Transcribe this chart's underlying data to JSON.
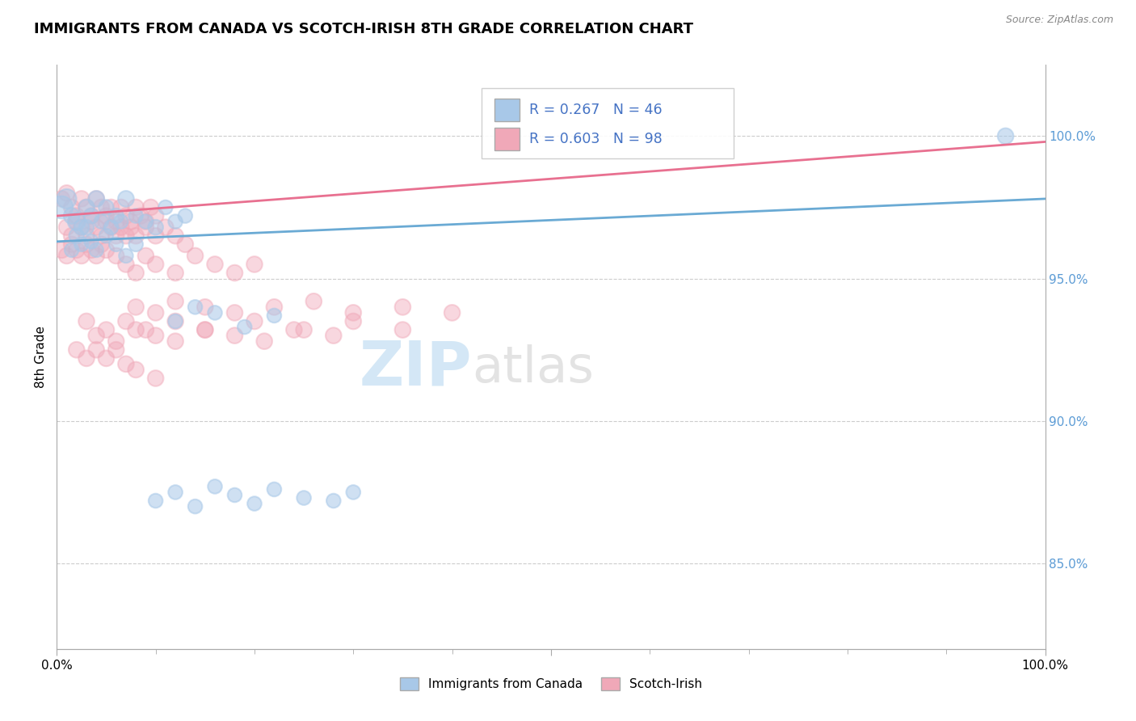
{
  "title": "IMMIGRANTS FROM CANADA VS SCOTCH-IRISH 8TH GRADE CORRELATION CHART",
  "source_text": "Source: ZipAtlas.com",
  "ylabel": "8th Grade",
  "y_ticks": [
    0.85,
    0.9,
    0.95,
    1.0
  ],
  "color_canada": "#a8c8e8",
  "color_scotch": "#f0a8b8",
  "color_canada_line": "#6aaad4",
  "color_scotch_line": "#e87090",
  "watermark_zip": "ZIP",
  "watermark_atlas": "atlas",
  "canada_x": [
    0.005,
    0.01,
    0.015,
    0.02,
    0.025,
    0.03,
    0.035,
    0.04,
    0.045,
    0.05,
    0.055,
    0.06,
    0.065,
    0.07,
    0.08,
    0.09,
    0.1,
    0.11,
    0.12,
    0.13,
    0.015,
    0.02,
    0.025,
    0.03,
    0.035,
    0.04,
    0.05,
    0.06,
    0.07,
    0.08,
    0.1,
    0.12,
    0.14,
    0.16,
    0.18,
    0.2,
    0.22,
    0.25,
    0.28,
    0.3,
    0.12,
    0.14,
    0.16,
    0.19,
    0.22,
    0.96
  ],
  "canada_y": [
    0.975,
    0.978,
    0.972,
    0.97,
    0.968,
    0.975,
    0.972,
    0.978,
    0.97,
    0.975,
    0.968,
    0.972,
    0.97,
    0.978,
    0.972,
    0.97,
    0.968,
    0.975,
    0.97,
    0.972,
    0.96,
    0.965,
    0.962,
    0.968,
    0.963,
    0.96,
    0.965,
    0.962,
    0.958,
    0.962,
    0.872,
    0.875,
    0.87,
    0.877,
    0.874,
    0.871,
    0.876,
    0.873,
    0.872,
    0.875,
    0.935,
    0.94,
    0.938,
    0.933,
    0.937,
    1.0
  ],
  "canada_size": [
    400,
    300,
    200,
    250,
    180,
    200,
    180,
    200,
    160,
    180,
    160,
    180,
    160,
    200,
    160,
    160,
    180,
    160,
    160,
    160,
    160,
    180,
    160,
    180,
    160,
    160,
    160,
    160,
    160,
    160,
    160,
    160,
    160,
    160,
    160,
    160,
    160,
    160,
    160,
    160,
    160,
    160,
    160,
    160,
    160,
    200
  ],
  "scotch_x": [
    0.005,
    0.01,
    0.015,
    0.02,
    0.025,
    0.03,
    0.035,
    0.04,
    0.045,
    0.05,
    0.055,
    0.06,
    0.065,
    0.07,
    0.075,
    0.08,
    0.085,
    0.09,
    0.095,
    0.1,
    0.01,
    0.015,
    0.02,
    0.025,
    0.03,
    0.035,
    0.04,
    0.045,
    0.05,
    0.055,
    0.06,
    0.065,
    0.07,
    0.075,
    0.08,
    0.09,
    0.1,
    0.11,
    0.12,
    0.13,
    0.005,
    0.01,
    0.015,
    0.02,
    0.025,
    0.03,
    0.035,
    0.04,
    0.045,
    0.05,
    0.06,
    0.07,
    0.08,
    0.09,
    0.1,
    0.12,
    0.14,
    0.16,
    0.18,
    0.2,
    0.08,
    0.1,
    0.12,
    0.15,
    0.18,
    0.22,
    0.26,
    0.3,
    0.35,
    0.4,
    0.03,
    0.05,
    0.07,
    0.09,
    0.12,
    0.15,
    0.2,
    0.25,
    0.3,
    0.35,
    0.04,
    0.06,
    0.08,
    0.1,
    0.12,
    0.15,
    0.18,
    0.21,
    0.24,
    0.28,
    0.02,
    0.03,
    0.04,
    0.05,
    0.06,
    0.07,
    0.08,
    0.1
  ],
  "scotch_y": [
    0.978,
    0.98,
    0.975,
    0.972,
    0.978,
    0.975,
    0.972,
    0.978,
    0.975,
    0.972,
    0.975,
    0.97,
    0.975,
    0.972,
    0.97,
    0.975,
    0.972,
    0.97,
    0.975,
    0.972,
    0.968,
    0.965,
    0.97,
    0.968,
    0.965,
    0.97,
    0.968,
    0.965,
    0.97,
    0.968,
    0.965,
    0.968,
    0.965,
    0.968,
    0.965,
    0.968,
    0.965,
    0.968,
    0.965,
    0.962,
    0.96,
    0.958,
    0.962,
    0.96,
    0.958,
    0.962,
    0.96,
    0.958,
    0.962,
    0.96,
    0.958,
    0.955,
    0.952,
    0.958,
    0.955,
    0.952,
    0.958,
    0.955,
    0.952,
    0.955,
    0.94,
    0.938,
    0.942,
    0.94,
    0.938,
    0.94,
    0.942,
    0.938,
    0.94,
    0.938,
    0.935,
    0.932,
    0.935,
    0.932,
    0.935,
    0.932,
    0.935,
    0.932,
    0.935,
    0.932,
    0.93,
    0.928,
    0.932,
    0.93,
    0.928,
    0.932,
    0.93,
    0.928,
    0.932,
    0.93,
    0.925,
    0.922,
    0.925,
    0.922,
    0.925,
    0.92,
    0.918,
    0.915
  ],
  "scotch_size": [
    200,
    200,
    200,
    200,
    200,
    200,
    200,
    200,
    200,
    200,
    200,
    200,
    200,
    200,
    200,
    200,
    200,
    200,
    200,
    200,
    200,
    200,
    200,
    200,
    200,
    200,
    200,
    200,
    200,
    200,
    200,
    200,
    200,
    200,
    200,
    200,
    200,
    200,
    200,
    200,
    200,
    200,
    200,
    200,
    200,
    200,
    200,
    200,
    200,
    200,
    200,
    200,
    200,
    200,
    200,
    200,
    200,
    200,
    200,
    200,
    200,
    200,
    200,
    200,
    200,
    200,
    200,
    200,
    200,
    200,
    200,
    200,
    200,
    200,
    200,
    200,
    200,
    200,
    200,
    200,
    200,
    200,
    200,
    200,
    200,
    200,
    200,
    200,
    200,
    200,
    200,
    200,
    200,
    200,
    200,
    200,
    200,
    200
  ]
}
